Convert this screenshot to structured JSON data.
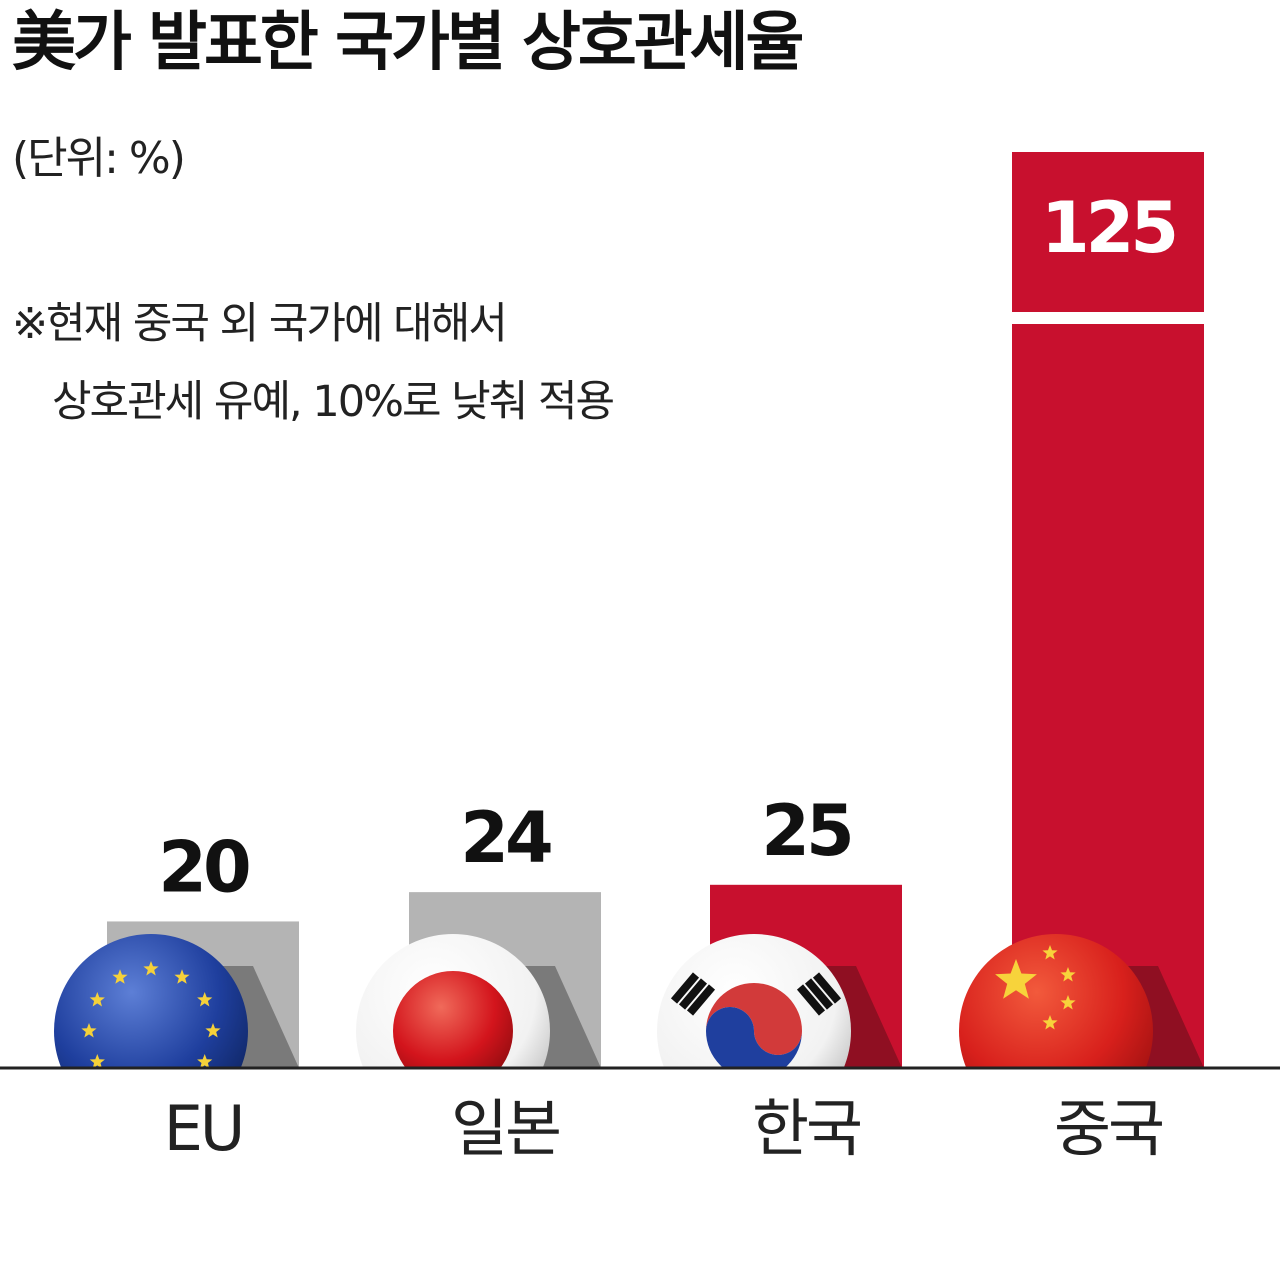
{
  "title": "美가 발표한 국가별 상호관세율",
  "unit": "(단위: %)",
  "note": {
    "line1": "※현재 중국 외 국가에 대해서",
    "line2": "상호관세 유예, 10%로 낮춰 적용"
  },
  "colors": {
    "gray_bar": "#b4b4b4",
    "red_bar": "#c8102e",
    "axis": "#222222"
  },
  "chart_data": {
    "type": "bar",
    "title": "美가 발표한 국가별 상호관세율",
    "ylabel": "(단위: %)",
    "categories": [
      "EU",
      "일본",
      "한국",
      "중국"
    ],
    "values": [
      20,
      24,
      25,
      125
    ],
    "value_labels": [
      "20",
      "24",
      "25",
      "125"
    ],
    "bar_colors": [
      "gray",
      "gray",
      "red",
      "red"
    ],
    "flags": [
      "eu-flag-icon",
      "japan-flag-icon",
      "korea-flag-icon",
      "china-flag-icon"
    ],
    "ylim": [
      0,
      125
    ],
    "grid": false,
    "legend": "none"
  }
}
